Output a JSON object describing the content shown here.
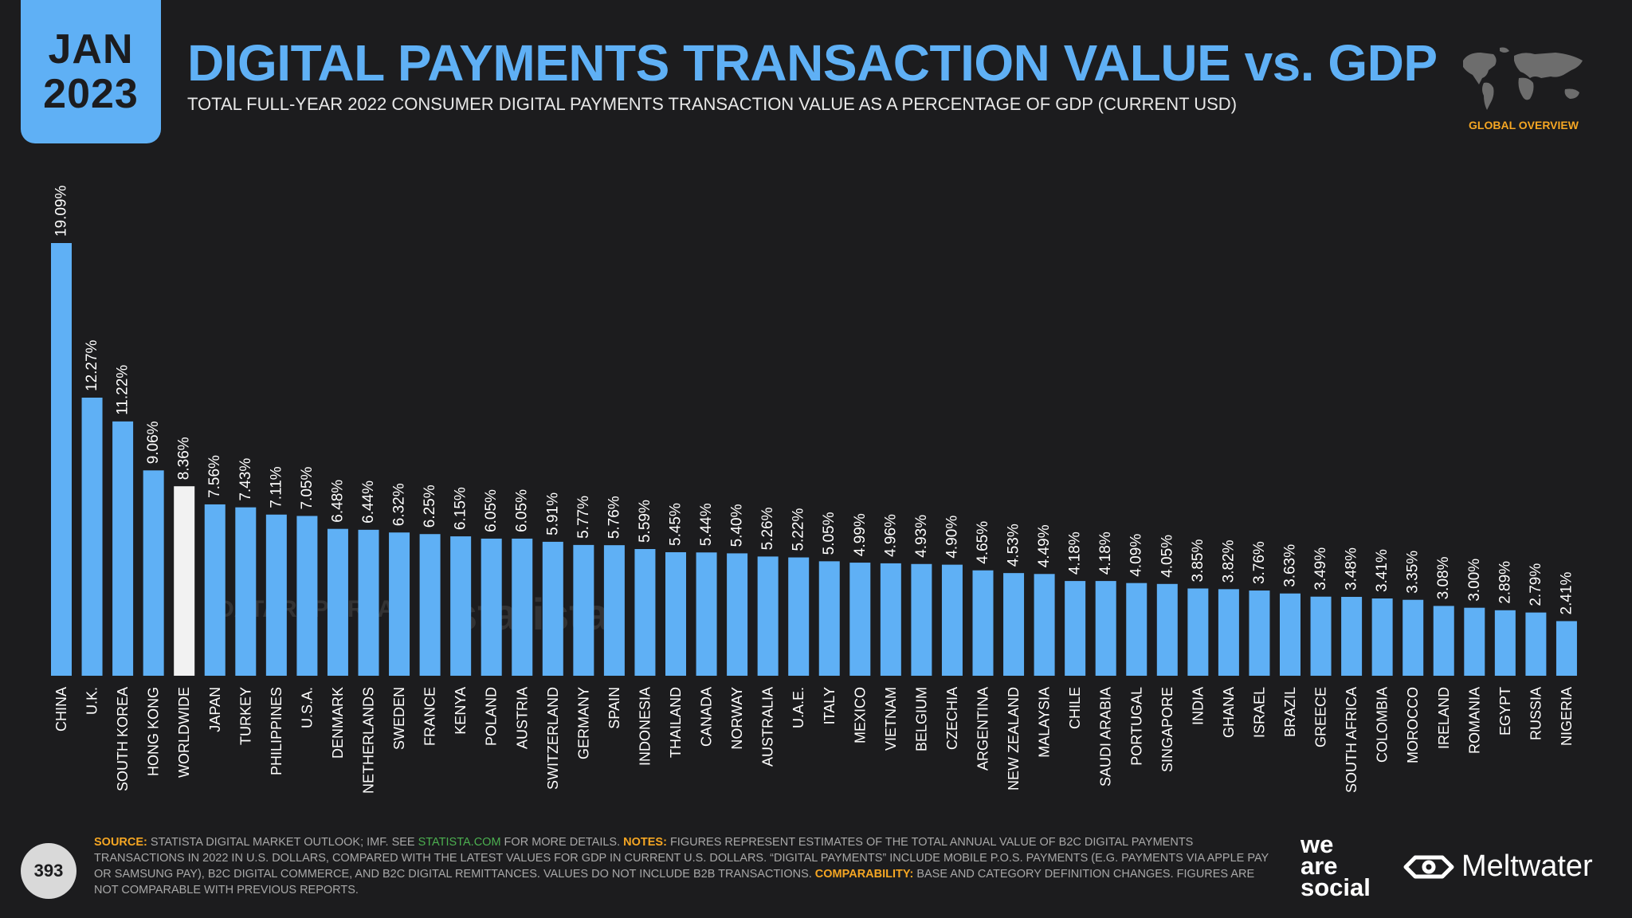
{
  "header": {
    "month": "JAN",
    "year": "2023",
    "title": "DIGITAL PAYMENTS TRANSACTION VALUE vs. GDP",
    "subtitle": "TOTAL FULL-YEAR 2022 CONSUMER DIGITAL PAYMENTS TRANSACTION VALUE AS A PERCENTAGE OF GDP (CURRENT USD)",
    "section": "GLOBAL OVERVIEW"
  },
  "watermarks": {
    "datareportal": "DATAREPORTAL",
    "statista": "statista"
  },
  "colors": {
    "accent": "#5fb0f5",
    "highlight": "#f2f2f2",
    "label_accent": "#f5a623",
    "background": "#1c1c1e"
  },
  "chart_data": {
    "type": "bar",
    "title": "DIGITAL PAYMENTS TRANSACTION VALUE vs. GDP",
    "xlabel": "",
    "ylabel": "",
    "ylim": [
      0,
      20
    ],
    "highlight_category": "WORLDWIDE",
    "categories": [
      "CHINA",
      "U.K.",
      "SOUTH KOREA",
      "HONG KONG",
      "WORLDWIDE",
      "JAPAN",
      "TURKEY",
      "PHILIPPINES",
      "U.S.A.",
      "DENMARK",
      "NETHERLANDS",
      "SWEDEN",
      "FRANCE",
      "KENYA",
      "POLAND",
      "AUSTRIA",
      "SWITZERLAND",
      "GERMANY",
      "SPAIN",
      "INDONESIA",
      "THAILAND",
      "CANADA",
      "NORWAY",
      "AUSTRALIA",
      "U.A.E.",
      "ITALY",
      "MEXICO",
      "VIETNAM",
      "BELGIUM",
      "CZECHIA",
      "ARGENTINA",
      "NEW ZEALAND",
      "MALAYSIA",
      "CHILE",
      "SAUDI ARABIA",
      "PORTUGAL",
      "SINGAPORE",
      "INDIA",
      "GHANA",
      "ISRAEL",
      "BRAZIL",
      "GREECE",
      "SOUTH AFRICA",
      "COLOMBIA",
      "MOROCCO",
      "IRELAND",
      "ROMANIA",
      "EGYPT",
      "RUSSIA",
      "NIGERIA"
    ],
    "values": [
      19.09,
      12.27,
      11.22,
      9.06,
      8.36,
      7.56,
      7.43,
      7.11,
      7.05,
      6.48,
      6.44,
      6.32,
      6.25,
      6.15,
      6.05,
      6.05,
      5.91,
      5.77,
      5.76,
      5.59,
      5.45,
      5.44,
      5.4,
      5.26,
      5.22,
      5.05,
      4.99,
      4.96,
      4.93,
      4.9,
      4.65,
      4.53,
      4.49,
      4.18,
      4.18,
      4.09,
      4.05,
      3.85,
      3.82,
      3.76,
      3.63,
      3.49,
      3.48,
      3.41,
      3.35,
      3.08,
      3.0,
      2.89,
      2.79,
      2.41
    ],
    "value_labels": [
      "19.09%",
      "12.27%",
      "11.22%",
      "9.06%",
      "8.36%",
      "7.56%",
      "7.43%",
      "7.11%",
      "7.05%",
      "6.48%",
      "6.44%",
      "6.32%",
      "6.25%",
      "6.15%",
      "6.05%",
      "6.05%",
      "5.91%",
      "5.77%",
      "5.76%",
      "5.59%",
      "5.45%",
      "5.44%",
      "5.40%",
      "5.26%",
      "5.22%",
      "5.05%",
      "4.99%",
      "4.96%",
      "4.93%",
      "4.90%",
      "4.65%",
      "4.53%",
      "4.49%",
      "4.18%",
      "4.18%",
      "4.09%",
      "4.05%",
      "3.85%",
      "3.82%",
      "3.76%",
      "3.63%",
      "3.49%",
      "3.48%",
      "3.41%",
      "3.35%",
      "3.08%",
      "3.00%",
      "2.89%",
      "2.79%",
      "2.41%"
    ]
  },
  "footer": {
    "page_number": "393",
    "source_label": "SOURCE:",
    "source_text_1": " STATISTA DIGITAL MARKET OUTLOOK; IMF. SEE ",
    "source_link": "STATISTA.COM",
    "source_text_2": " FOR MORE DETAILS. ",
    "notes_label": "NOTES:",
    "notes_text": " FIGURES REPRESENT ESTIMATES OF THE TOTAL ANNUAL VALUE OF B2C DIGITAL PAYMENTS TRANSACTIONS IN 2022 IN U.S. DOLLARS, COMPARED WITH THE LATEST VALUES FOR GDP IN CURRENT U.S. DOLLARS. “DIGITAL PAYMENTS” INCLUDE MOBILE P.O.S. PAYMENTS (E.G. PAYMENTS VIA APPLE PAY OR SAMSUNG PAY), B2C DIGITAL COMMERCE, AND B2C DIGITAL REMITTANCES. VALUES DO NOT INCLUDE B2B TRANSACTIONS. ",
    "comparability_label": "COMPARABILITY:",
    "comparability_text": " BASE AND CATEGORY DEFINITION CHANGES. FIGURES ARE NOT COMPARABLE WITH PREVIOUS REPORTS.",
    "brand_1_line_1": "we",
    "brand_1_line_2": "are",
    "brand_1_line_3": "social",
    "brand_2": "Meltwater"
  }
}
